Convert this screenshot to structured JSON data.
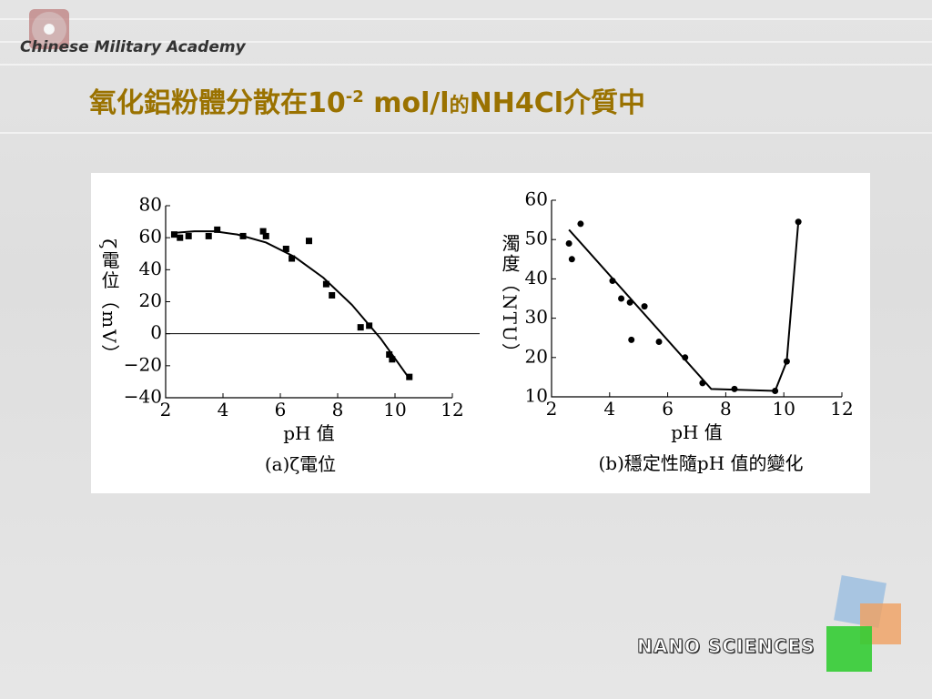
{
  "header": {
    "logo_text": "Chinese Military Academy",
    "title_parts": [
      "氧化鋁粉體分散在10",
      "-2",
      " mol/l",
      "的",
      "NH4Cl",
      "介質中"
    ]
  },
  "footer": {
    "logo_text": "NANO SCIENCES"
  },
  "chart_data": [
    {
      "type": "scatter",
      "y_label": "ζ電位（mV）",
      "x_label": "pH 值",
      "caption": "(a)ζ電位",
      "xlim": [
        2,
        12
      ],
      "ylim": [
        -40,
        80
      ],
      "xticks": [
        2,
        4,
        6,
        8,
        10,
        12
      ],
      "yticks": [
        {
          "value": -40,
          "label": "−40"
        },
        {
          "value": -20,
          "label": "−20"
        },
        0,
        20,
        40,
        60,
        80
      ],
      "reference_line": 0,
      "color": "#000000",
      "series": [
        {
          "type": "scatter",
          "x": [
            2.3,
            2.5,
            2.8,
            3.5,
            3.8,
            4.7,
            5.4,
            5.5,
            6.2,
            6.4,
            7.0,
            7.6,
            7.8,
            8.8,
            9.1,
            9.8,
            9.9,
            10.5
          ],
          "values": [
            62,
            60,
            61,
            61,
            65,
            61,
            64,
            61,
            53,
            47,
            58,
            31,
            24,
            4,
            5,
            -13,
            -16,
            -27
          ]
        },
        {
          "type": "line",
          "x": [
            2.3,
            3,
            3.7,
            4.5,
            5.5,
            6.5,
            7.5,
            8.5,
            9.5,
            10.5
          ],
          "values": [
            63,
            64,
            64,
            62,
            57,
            48,
            35,
            18,
            -3,
            -28
          ]
        }
      ]
    },
    {
      "type": "scatter",
      "y_label": "濁度（NTU）",
      "x_label": "pH 值",
      "caption": "(b)穩定性隨pH 值的變化",
      "xlim": [
        2,
        12
      ],
      "ylim": [
        10,
        60
      ],
      "xticks": [
        2,
        4,
        6,
        8,
        10,
        12
      ],
      "yticks": [
        10,
        20,
        30,
        40,
        50,
        60
      ],
      "color": "#000000",
      "series": [
        {
          "type": "scatter",
          "x": [
            2.6,
            2.7,
            3.0,
            4.1,
            4.4,
            4.7,
            4.75,
            5.2,
            5.7,
            6.6,
            7.2,
            8.3,
            9.7,
            10.1,
            10.5
          ],
          "values": [
            49,
            45,
            54,
            39.5,
            35,
            34,
            24.5,
            33,
            24,
            20,
            13.5,
            12,
            11.5,
            19,
            54.5
          ]
        },
        {
          "type": "line",
          "x": [
            2.6,
            7.5,
            9.7,
            10.1,
            10.5
          ],
          "values": [
            52.5,
            12,
            11.5,
            19,
            54.5
          ]
        }
      ]
    }
  ]
}
